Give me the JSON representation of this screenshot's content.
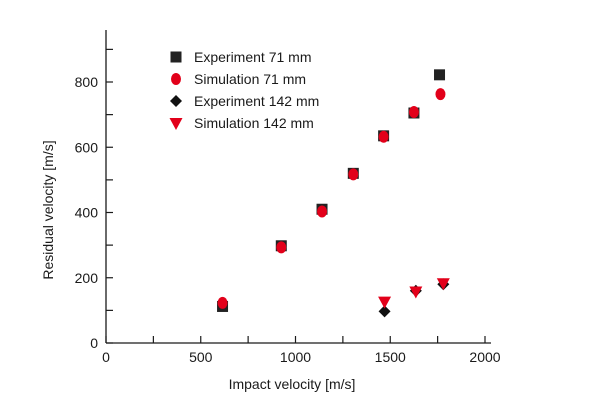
{
  "chart_data": {
    "type": "scatter",
    "title": "",
    "xlabel": "Impact velocity [m/s]",
    "ylabel": "Residual velocity  [m/s]",
    "xlim": [
      0,
      2100
    ],
    "ylim": [
      0,
      950
    ],
    "xticks": [
      0,
      500,
      1000,
      1500,
      2000
    ],
    "yticks": [
      0,
      200,
      400,
      600,
      800
    ],
    "grid": false,
    "legend_position": "top-left",
    "series": [
      {
        "name": "Experiment 71 mm",
        "marker": "square",
        "color": "#222222",
        "points": [
          {
            "x": 615,
            "y": 112
          },
          {
            "x": 925,
            "y": 298
          },
          {
            "x": 1140,
            "y": 410
          },
          {
            "x": 1305,
            "y": 520
          },
          {
            "x": 1465,
            "y": 635
          },
          {
            "x": 1625,
            "y": 705
          },
          {
            "x": 1760,
            "y": 822
          }
        ]
      },
      {
        "name": "Simulation 71 mm",
        "marker": "circle",
        "color": "#e2001a",
        "points": [
          {
            "x": 615,
            "y": 123
          },
          {
            "x": 925,
            "y": 293
          },
          {
            "x": 1140,
            "y": 403
          },
          {
            "x": 1305,
            "y": 517
          },
          {
            "x": 1465,
            "y": 632
          },
          {
            "x": 1625,
            "y": 708
          },
          {
            "x": 1765,
            "y": 763
          }
        ]
      },
      {
        "name": "Experiment 142 mm",
        "marker": "diamond",
        "color": "#111111",
        "points": [
          {
            "x": 1470,
            "y": 97
          },
          {
            "x": 1635,
            "y": 160
          },
          {
            "x": 1780,
            "y": 180
          }
        ]
      },
      {
        "name": "Simulation 142 mm",
        "marker": "triangle-down",
        "color": "#e2001a",
        "points": [
          {
            "x": 1470,
            "y": 127
          },
          {
            "x": 1635,
            "y": 158
          },
          {
            "x": 1780,
            "y": 183
          }
        ]
      }
    ]
  }
}
